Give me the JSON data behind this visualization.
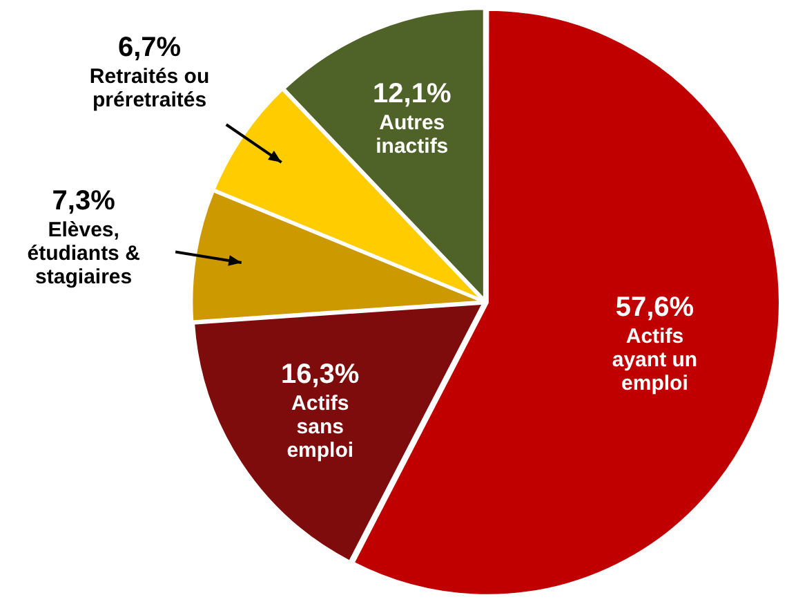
{
  "chart_data": {
    "type": "pie",
    "categories": [
      "Actifs\nayant un\nemploi",
      "Actifs\nsans\nemploi",
      "Elèves,\nétudiants &\nstagiaires",
      "Retraités ou\npréretraités",
      "Autres\ninactifs"
    ],
    "values": [
      57.6,
      16.3,
      7.3,
      6.7,
      12.1
    ],
    "colors": [
      "#c00000",
      "#7f0c0c",
      "#cc9900",
      "#ffcc00",
      "#4f6228"
    ],
    "value_labels": [
      "57,6%",
      "16,3%",
      "7,3%",
      "6,7%",
      "12,1%"
    ]
  }
}
